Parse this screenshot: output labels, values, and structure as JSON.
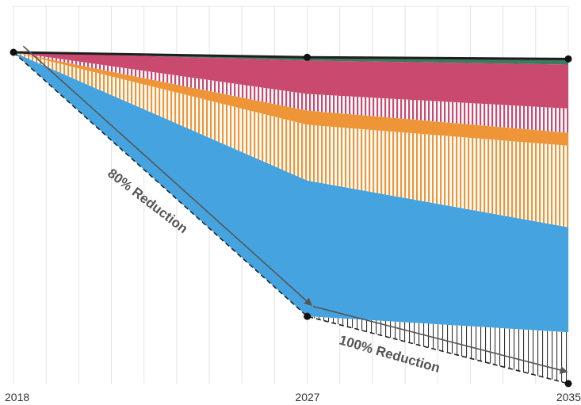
{
  "chart_data": {
    "type": "area",
    "x": [
      2018,
      2027,
      2035
    ],
    "x_tick_labels": [
      "2018",
      "2027",
      "2035"
    ],
    "xlim": [
      2018,
      2035
    ],
    "ylim": [
      0,
      100
    ],
    "grid": "vertical",
    "reference_line": {
      "name": "",
      "color": "#1e1e1e",
      "values": [
        100,
        98.5,
        98
      ]
    },
    "layers": [
      {
        "name": "",
        "color": "#3d7a5e",
        "pattern": "solid",
        "top": [
          100,
          98.5,
          98
        ],
        "bottom": [
          100,
          97.5,
          96.3
        ]
      },
      {
        "name": "",
        "color": "#c94a6e",
        "pattern": "solid",
        "top": [
          100,
          97.5,
          96.3
        ],
        "bottom": [
          100,
          87.4,
          83
        ]
      },
      {
        "name": "",
        "color": "#c94a6e",
        "pattern": "hatched",
        "top": [
          100,
          87.4,
          83
        ],
        "bottom": [
          100,
          82.4,
          75.7
        ]
      },
      {
        "name": "",
        "color": "#ee9538",
        "pattern": "solid",
        "top": [
          100,
          82.4,
          75.7
        ],
        "bottom": [
          100,
          78.1,
          71.8
        ]
      },
      {
        "name": "",
        "color": "#ee9538",
        "pattern": "hatched",
        "top": [
          100,
          78.1,
          71.8
        ],
        "bottom": [
          100,
          61.3,
          47.2
        ]
      },
      {
        "name": "",
        "color": "#45a4df",
        "pattern": "solid",
        "top": [
          100,
          61.3,
          47.2
        ],
        "bottom": [
          100,
          20.3,
          15.5
        ]
      },
      {
        "name": "",
        "color": "#222222",
        "pattern": "hatched",
        "top": [
          100,
          20.3,
          15.5
        ],
        "bottom": [
          100,
          20.3,
          0
        ]
      }
    ],
    "target_path": {
      "x": [
        2018,
        2027,
        2035
      ],
      "values": [
        100,
        20.3,
        0
      ]
    },
    "annotations": [
      {
        "text": "80% Reduction",
        "from": [
          2018,
          2027
        ]
      },
      {
        "text": "100% Reduction",
        "from": [
          2027,
          2035
        ]
      }
    ]
  }
}
